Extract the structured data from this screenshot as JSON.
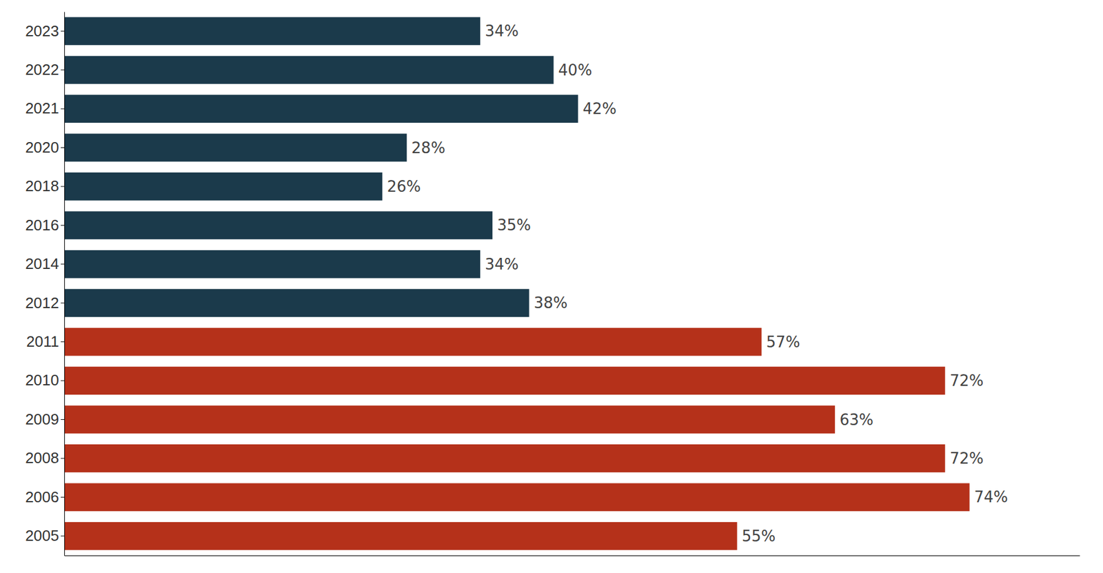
{
  "chart_data": {
    "type": "bar",
    "orientation": "horizontal",
    "categories": [
      "2023",
      "2022",
      "2021",
      "2020",
      "2018",
      "2016",
      "2014",
      "2012",
      "2011",
      "2010",
      "2009",
      "2008",
      "2006",
      "2005"
    ],
    "values": [
      34,
      40,
      42,
      28,
      26,
      35,
      34,
      38,
      57,
      72,
      63,
      72,
      74,
      55
    ],
    "value_labels": [
      "34%",
      "40%",
      "42%",
      "28%",
      "26%",
      "35%",
      "34%",
      "38%",
      "57%",
      "72%",
      "63%",
      "72%",
      "74%",
      "55%"
    ],
    "colors": [
      "#1b3a4b",
      "#1b3a4b",
      "#1b3a4b",
      "#1b3a4b",
      "#1b3a4b",
      "#1b3a4b",
      "#1b3a4b",
      "#1b3a4b",
      "#b5311a",
      "#b5311a",
      "#b5311a",
      "#b5311a",
      "#b5311a",
      "#b5311a"
    ],
    "xlim": [
      0,
      83
    ],
    "data_labels": true,
    "tick_labels": "y",
    "grid": false
  }
}
